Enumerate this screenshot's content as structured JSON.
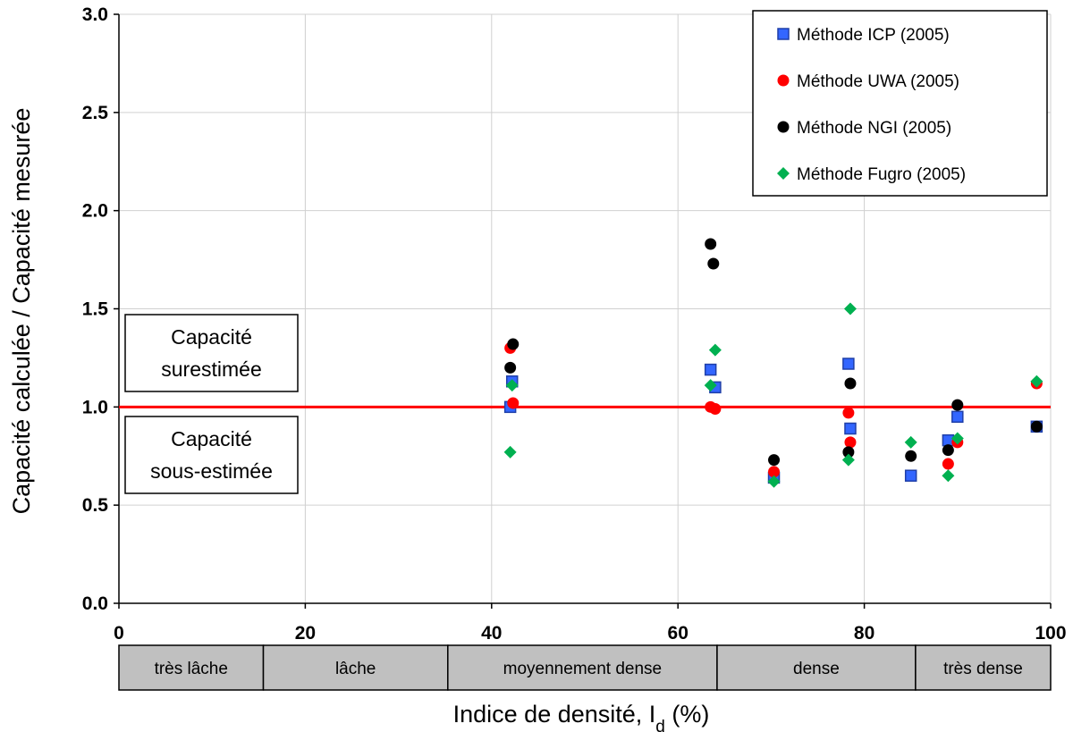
{
  "chart_data": {
    "type": "scatter",
    "xlabel": "Indice de densité, I",
    "xlabel_subscript": "d",
    "xlabel_suffix": " (%)",
    "ylabel": "Capacité calculée / Capacité  mesurée",
    "xlim": [
      0,
      100
    ],
    "ylim": [
      0,
      3.0
    ],
    "x_ticks": [
      0,
      20,
      40,
      60,
      80,
      100
    ],
    "y_ticks": [
      "0.0",
      "0.5",
      "1.0",
      "1.5",
      "2.0",
      "2.5",
      "3.0"
    ],
    "grid": "vertical",
    "legend_position": "top-right",
    "reference_line": {
      "y": 1.0,
      "color": "#ff0000"
    },
    "series": [
      {
        "name": "Méthode ICP (2005)",
        "marker": "square",
        "color": "#3366ff",
        "edge": "#1f3fa8",
        "points": [
          [
            42,
            1.0
          ],
          [
            42.2,
            1.13
          ],
          [
            63.5,
            1.19
          ],
          [
            64,
            1.1
          ],
          [
            70.3,
            0.64
          ],
          [
            78.3,
            1.22
          ],
          [
            78.5,
            0.89
          ],
          [
            85,
            0.65
          ],
          [
            89,
            0.83
          ],
          [
            90,
            0.95
          ],
          [
            98.5,
            0.9
          ]
        ]
      },
      {
        "name": "Méthode UWA (2005)",
        "marker": "circle",
        "color": "#ff0000",
        "edge": "#ff0000",
        "points": [
          [
            42,
            1.3
          ],
          [
            42.3,
            1.02
          ],
          [
            63.5,
            1.0
          ],
          [
            64,
            0.99
          ],
          [
            70.3,
            0.67
          ],
          [
            78.3,
            0.97
          ],
          [
            78.5,
            0.82
          ],
          [
            89,
            0.71
          ],
          [
            90,
            0.82
          ],
          [
            98.5,
            1.12
          ]
        ]
      },
      {
        "name": "Méthode NGI (2005)",
        "marker": "circle",
        "color": "#000000",
        "edge": "#000000",
        "points": [
          [
            42,
            1.2
          ],
          [
            42.3,
            1.32
          ],
          [
            63.5,
            1.83
          ],
          [
            63.8,
            1.73
          ],
          [
            70.3,
            0.73
          ],
          [
            78.5,
            1.12
          ],
          [
            78.3,
            0.77
          ],
          [
            85,
            0.75
          ],
          [
            89,
            0.78
          ],
          [
            90,
            1.01
          ],
          [
            98.5,
            0.9
          ]
        ]
      },
      {
        "name": "Méthode Fugro (2005)",
        "marker": "diamond",
        "color": "#00b050",
        "edge": "#00b050",
        "points": [
          [
            42,
            0.77
          ],
          [
            42.2,
            1.11
          ],
          [
            63.5,
            1.11
          ],
          [
            64,
            1.29
          ],
          [
            70.3,
            0.62
          ],
          [
            78.5,
            1.5
          ],
          [
            78.3,
            0.73
          ],
          [
            85,
            0.82
          ],
          [
            89,
            0.65
          ],
          [
            90,
            0.84
          ],
          [
            98.5,
            1.13
          ]
        ]
      }
    ],
    "annotations": [
      {
        "id": "over",
        "lines": [
          "Capacité",
          "surestimée"
        ]
      },
      {
        "id": "under",
        "lines": [
          "Capacité",
          "sous-estimée"
        ]
      }
    ],
    "density_zones": [
      {
        "label": "très lâche",
        "from": 0,
        "to": 15.5
      },
      {
        "label": "lâche",
        "from": 15.5,
        "to": 35.3
      },
      {
        "label": "moyennement dense",
        "from": 35.3,
        "to": 64.2
      },
      {
        "label": "dense",
        "from": 64.2,
        "to": 85.5
      },
      {
        "label": "très dense",
        "from": 85.5,
        "to": 100
      }
    ]
  }
}
